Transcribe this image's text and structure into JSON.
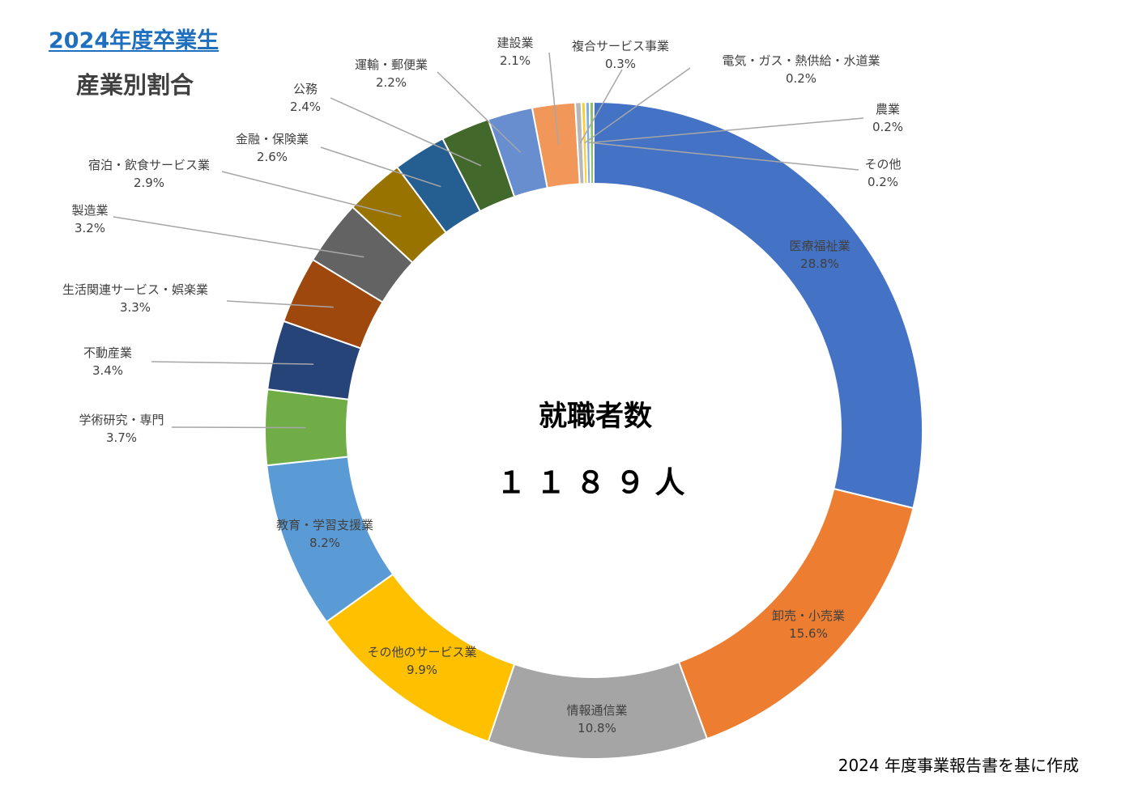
{
  "header": {
    "title": "2024年度卒業生",
    "subtitle": "産業別割合"
  },
  "center": {
    "label": "就職者数",
    "value": "１１８９人"
  },
  "footer": {
    "source": "2024 年度事業報告書を基に作成"
  },
  "chart_data": {
    "type": "donut",
    "unit": "%",
    "slices": [
      {
        "label": "医療福祉業",
        "value": 28.8,
        "pct_label": "28.8%",
        "color": "#4472c4"
      },
      {
        "label": "卸売・小売業",
        "value": 15.6,
        "pct_label": "15.6%",
        "color": "#ed7d31"
      },
      {
        "label": "情報通信業",
        "value": 10.8,
        "pct_label": "10.8%",
        "color": "#a5a5a5"
      },
      {
        "label": "その他のサービス業",
        "value": 9.9,
        "pct_label": "9.9%",
        "color": "#ffc000"
      },
      {
        "label": "教育・学習支援業",
        "value": 8.2,
        "pct_label": "8.2%",
        "color": "#5b9bd5"
      },
      {
        "label": "学術研究・専門",
        "value": 3.7,
        "pct_label": "3.7%",
        "color": "#70ad47"
      },
      {
        "label": "不動産業",
        "value": 3.4,
        "pct_label": "3.4%",
        "color": "#264478"
      },
      {
        "label": "生活関連サービス・娯楽業",
        "value": 3.3,
        "pct_label": "3.3%",
        "color": "#9e480e"
      },
      {
        "label": "製造業",
        "value": 3.2,
        "pct_label": "3.2%",
        "color": "#636363"
      },
      {
        "label": "宿泊・飲食サービス業",
        "value": 2.9,
        "pct_label": "2.9%",
        "color": "#997300"
      },
      {
        "label": "金融・保険業",
        "value": 2.6,
        "pct_label": "2.6%",
        "color": "#255e91"
      },
      {
        "label": "公務",
        "value": 2.4,
        "pct_label": "2.4%",
        "color": "#43682b"
      },
      {
        "label": "運輸・郵便業",
        "value": 2.2,
        "pct_label": "2.2%",
        "color": "#698ed0"
      },
      {
        "label": "建設業",
        "value": 2.1,
        "pct_label": "2.1%",
        "color": "#f1975a"
      },
      {
        "label": "複合サービス事業",
        "value": 0.3,
        "pct_label": "0.3%",
        "color": "#b7b7b7"
      },
      {
        "label": "電気・ガス・熱供給・水道業",
        "value": 0.2,
        "pct_label": "0.2%",
        "color": "#ffcd33"
      },
      {
        "label": "農業",
        "value": 0.2,
        "pct_label": "0.2%",
        "color": "#7cafdd"
      },
      {
        "label": "その他",
        "value": 0.2,
        "pct_label": "0.2%",
        "color": "#8cc168"
      }
    ]
  }
}
